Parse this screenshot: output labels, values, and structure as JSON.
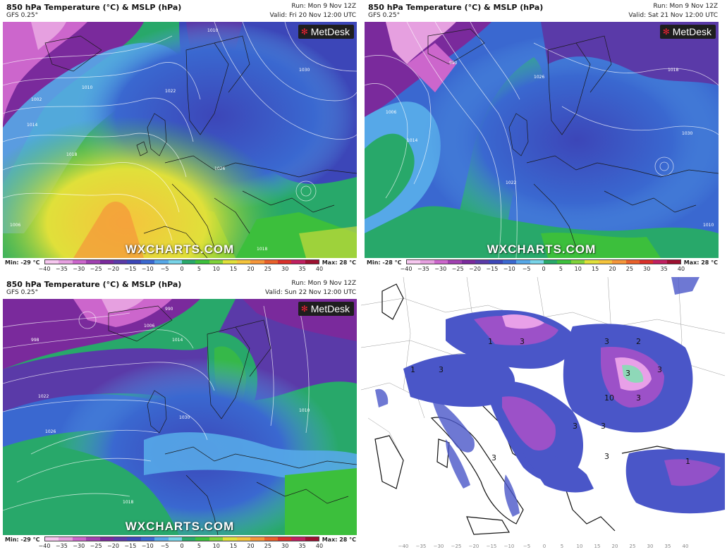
{
  "panels": [
    {
      "title": "850 hPa Temperature (°C) & MSLP (hPa)",
      "subtitle": "GFS 0.25°",
      "run": "Run: Mon 9 Nov 12Z",
      "valid": "Valid: Fri 20 Nov 12:00 UTC",
      "logo": "MetDesk",
      "watermark": "WXCHARTS.COM",
      "min": "Min: -29 °C",
      "max": "Max: 28 °C",
      "isobar_labels": [
        "1002",
        "1010",
        "1014",
        "1018",
        "1022",
        "1026",
        "1030",
        "1010",
        "1006",
        "1018"
      ]
    },
    {
      "title": "850 hPa Temperature (°C) & MSLP (hPa)",
      "subtitle": "GFS 0.25°",
      "run": "Run: Mon 9 Nov 12Z",
      "valid": "Valid: Sat 21 Nov 12:00 UTC",
      "logo": "MetDesk",
      "watermark": "WXCHARTS.COM",
      "min": "Min: -28 °C",
      "max": "Max: 28 °C",
      "isobar_labels": [
        "990",
        "1006",
        "1014",
        "1022",
        "1026",
        "1030",
        "1018",
        "1010"
      ]
    },
    {
      "title": "850 hPa Temperature (°C) & MSLP (hPa)",
      "subtitle": "GFS 0.25°",
      "run": "Run: Mon 9 Nov 12Z",
      "valid": "Valid: Sun 22 Nov 12:00 UTC",
      "logo": "MetDesk",
      "watermark": "WXCHARTS.COM",
      "min": "Min: -29 °C",
      "max": "Max: 28 °C",
      "isobar_labels": [
        "990",
        "998",
        "1006",
        "1014",
        "1022",
        "1030",
        "1026",
        "1018",
        "1010"
      ]
    }
  ],
  "colorbar": {
    "ticks": [
      "−40",
      "−35",
      "−30",
      "−25",
      "−20",
      "−15",
      "−10",
      "−5",
      "0",
      "5",
      "10",
      "15",
      "20",
      "25",
      "30",
      "35",
      "40"
    ],
    "colors": [
      "#f7c8f0",
      "#e6a0e0",
      "#cc66cc",
      "#a040b0",
      "#7a2a9c",
      "#5a3aa8",
      "#3c46b8",
      "#3a68d0",
      "#56a8e8",
      "#78d4e8",
      "#28a86a",
      "#3cbf3c",
      "#7fd23a",
      "#e0e03a",
      "#f5c43c",
      "#f5963a",
      "#e8602a",
      "#d8302a",
      "#c02060",
      "#9c1030"
    ]
  },
  "snow_panel": {
    "numbers": [
      "3",
      "3",
      "2",
      "1",
      "3",
      "3",
      "3",
      "10",
      "3",
      "1",
      "3",
      "3",
      "3",
      "3",
      "1"
    ],
    "ticks": [
      "−40",
      "−35",
      "−30",
      "−25",
      "−20",
      "−15",
      "−10",
      "−5",
      "0",
      "5",
      "10",
      "15",
      "20",
      "25",
      "30",
      "35",
      "40"
    ]
  }
}
